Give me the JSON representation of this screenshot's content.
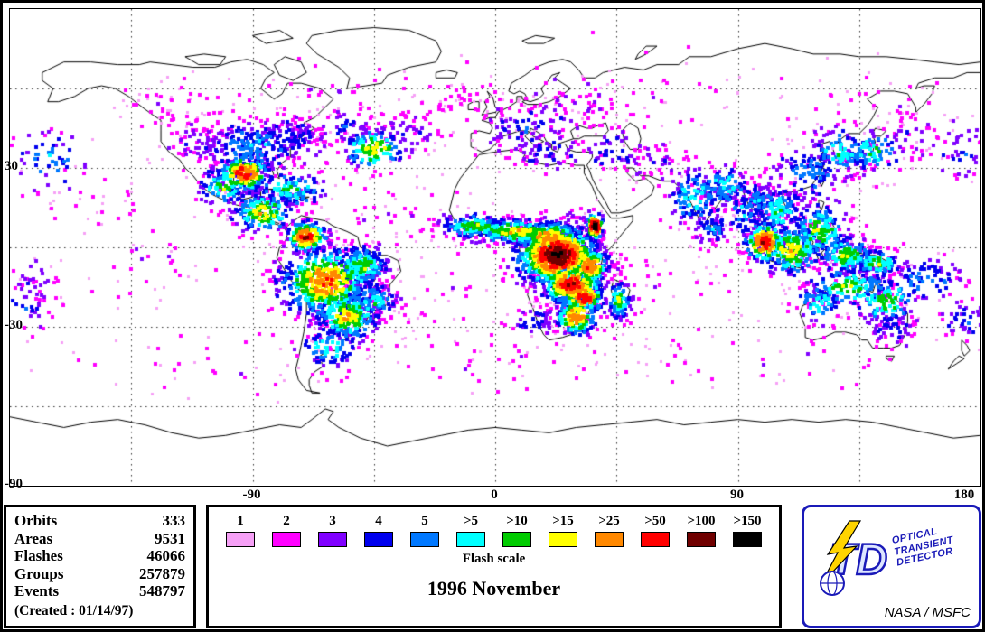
{
  "title": "1996 November",
  "axis": {
    "lat_ticks": [
      {
        "label": "30",
        "lat": 30
      },
      {
        "label": "-30",
        "lat": -30
      },
      {
        "label": "-90",
        "lat": -90
      }
    ],
    "lon_ticks": [
      {
        "label": "-90",
        "lon": -90
      },
      {
        "label": "0",
        "lon": 0
      },
      {
        "label": "90",
        "lon": 90
      },
      {
        "label": "180",
        "lon": 180
      }
    ]
  },
  "stats": {
    "rows": [
      [
        "Orbits",
        "333"
      ],
      [
        "Areas",
        "9531"
      ],
      [
        "Flashes",
        "46066"
      ],
      [
        "Groups",
        "257879"
      ],
      [
        "Events",
        "548797"
      ]
    ],
    "created": "(Created : 01/14/97)"
  },
  "legend": {
    "title": "Flash scale",
    "entries": [
      {
        "label": "1",
        "color": "#F6A0F6"
      },
      {
        "label": "2",
        "color": "#FF00FF"
      },
      {
        "label": "3",
        "color": "#8000FF"
      },
      {
        "label": "4",
        "color": "#0000EE"
      },
      {
        "label": "5",
        "color": "#0078FF"
      },
      {
        "label": ">5",
        "color": "#00FFFF"
      },
      {
        "label": ">10",
        "color": "#00CC00"
      },
      {
        "label": ">15",
        "color": "#FFFF00"
      },
      {
        "label": ">25",
        "color": "#FF8800"
      },
      {
        "label": ">50",
        "color": "#FF0000"
      },
      {
        "label": ">100",
        "color": "#700000"
      },
      {
        "label": ">150",
        "color": "#000000"
      }
    ]
  },
  "logo": {
    "monogram": "TD",
    "lines": [
      "OPTICAL",
      "TRANSIENT",
      "DETECTOR"
    ],
    "credit": "NASA / MSFC"
  },
  "chart_data": {
    "type": "scatter",
    "title": "1996 November",
    "projection": "equirectangular",
    "lon_range": [
      -180,
      180
    ],
    "lat_range": [
      -90,
      90
    ],
    "grid": {
      "lon_step": 45,
      "lat_step": 30,
      "style": "dotted"
    },
    "levels": [
      "1",
      "2",
      "3",
      "4",
      "5",
      ">5",
      ">10",
      ">15",
      ">25",
      ">50",
      ">100",
      ">150"
    ],
    "colors": [
      "#F6A0F6",
      "#FF00FF",
      "#8000FF",
      "#0000EE",
      "#0078FF",
      "#00FFFF",
      "#00CC00",
      "#FFFF00",
      "#FF8800",
      "#FF0000",
      "#700000",
      "#000000"
    ],
    "clusters": [
      {
        "lon": 23,
        "lat": -3,
        "sx": 8,
        "sy": 6,
        "n": 900,
        "peak": 10
      },
      {
        "lon": 20,
        "lat": 4,
        "sx": 6,
        "sy": 3,
        "n": 250,
        "peak": 8
      },
      {
        "lon": 28,
        "lat": -14,
        "sx": 6,
        "sy": 4,
        "n": 420,
        "peak": 9
      },
      {
        "lon": 30,
        "lat": -26,
        "sx": 4,
        "sy": 4,
        "n": 220,
        "peak": 8
      },
      {
        "lon": 33,
        "lat": -19,
        "sx": 4,
        "sy": 3,
        "n": 170,
        "peak": 9
      },
      {
        "lon": 35,
        "lat": -7,
        "sx": 4,
        "sy": 4,
        "n": 200,
        "peak": 8
      },
      {
        "lon": 37,
        "lat": 8,
        "sx": 1.6,
        "sy": 2.6,
        "n": 90,
        "peak": 11
      },
      {
        "lon": 8,
        "lat": 6,
        "sx": 9,
        "sy": 2.6,
        "n": 240,
        "peak": 7
      },
      {
        "lon": -8,
        "lat": 8,
        "sx": 7,
        "sy": 2.4,
        "n": 170,
        "peak": 6
      },
      {
        "lon": 46,
        "lat": -20,
        "sx": 2.6,
        "sy": 4,
        "n": 110,
        "peak": 6
      },
      {
        "lon": 15,
        "lat": -28,
        "sx": 6,
        "sy": 3,
        "n": 60,
        "peak": 3
      },
      {
        "lon": -63,
        "lat": -13,
        "sx": 9,
        "sy": 7,
        "n": 560,
        "peak": 8
      },
      {
        "lon": -55,
        "lat": -26,
        "sx": 6,
        "sy": 5,
        "n": 280,
        "peak": 7
      },
      {
        "lon": -70,
        "lat": 4,
        "sx": 4,
        "sy": 3,
        "n": 190,
        "peak": 9
      },
      {
        "lon": -49,
        "lat": -7,
        "sx": 5,
        "sy": 4,
        "n": 220,
        "peak": 6
      },
      {
        "lon": -62,
        "lat": -38,
        "sx": 6,
        "sy": 4,
        "n": 90,
        "peak": 5
      },
      {
        "lon": -45,
        "lat": -20,
        "sx": 5,
        "sy": 4,
        "n": 120,
        "peak": 5
      },
      {
        "lon": -86,
        "lat": 13,
        "sx": 6,
        "sy": 4,
        "n": 170,
        "peak": 7
      },
      {
        "lon": -93,
        "lat": 28,
        "sx": 5,
        "sy": 3.5,
        "n": 190,
        "peak": 9
      },
      {
        "lon": -76,
        "lat": 22,
        "sx": 8,
        "sy": 4,
        "n": 140,
        "peak": 5
      },
      {
        "lon": -101,
        "lat": 23,
        "sx": 5,
        "sy": 4,
        "n": 110,
        "peak": 6
      },
      {
        "lon": -90,
        "lat": 38,
        "sx": 12,
        "sy": 6,
        "n": 260,
        "peak": 4
      },
      {
        "lon": -76,
        "lat": 42,
        "sx": 8,
        "sy": 5,
        "n": 110,
        "peak": 3
      },
      {
        "lon": -111,
        "lat": 41,
        "sx": 8,
        "sy": 6,
        "n": 70,
        "peak": 2
      },
      {
        "lon": -122,
        "lat": 54,
        "sx": 10,
        "sy": 6,
        "n": 50,
        "peak": 1
      },
      {
        "lon": -45,
        "lat": 37,
        "sx": 6,
        "sy": 4,
        "n": 130,
        "peak": 7
      },
      {
        "lon": -32,
        "lat": 44,
        "sx": 9,
        "sy": 5,
        "n": 70,
        "peak": 2
      },
      {
        "lon": -55,
        "lat": 45,
        "sx": 6,
        "sy": 4,
        "n": 60,
        "peak": 3
      },
      {
        "lon": -40,
        "lat": 12,
        "sx": 18,
        "sy": 9,
        "n": 60,
        "peak": 1
      },
      {
        "lon": -25,
        "lat": -18,
        "sx": 13,
        "sy": 9,
        "n": 45,
        "peak": 1
      },
      {
        "lon": 10,
        "lat": 45,
        "sx": 10,
        "sy": 5,
        "n": 90,
        "peak": 3
      },
      {
        "lon": 27,
        "lat": 51,
        "sx": 12,
        "sy": 6,
        "n": 60,
        "peak": 2
      },
      {
        "lon": -12,
        "lat": 56,
        "sx": 8,
        "sy": 5,
        "n": 35,
        "peak": 1
      },
      {
        "lon": 20,
        "lat": 36,
        "sx": 8,
        "sy": 4,
        "n": 60,
        "peak": 3
      },
      {
        "lon": 45,
        "lat": 36,
        "sx": 8,
        "sy": 5,
        "n": 60,
        "peak": 3
      },
      {
        "lon": 60,
        "lat": 32,
        "sx": 8,
        "sy": 5,
        "n": 45,
        "peak": 2
      },
      {
        "lon": 74,
        "lat": 19,
        "sx": 6,
        "sy": 6,
        "n": 140,
        "peak": 5
      },
      {
        "lon": 85,
        "lat": 23,
        "sx": 5,
        "sy": 4,
        "n": 100,
        "peak": 5
      },
      {
        "lon": 80,
        "lat": 7,
        "sx": 4,
        "sy": 3,
        "n": 70,
        "peak": 4
      },
      {
        "lon": 92,
        "lat": 13,
        "sx": 4,
        "sy": 6,
        "n": 80,
        "peak": 4
      },
      {
        "lon": 100,
        "lat": 2,
        "sx": 4,
        "sy": 4,
        "n": 210,
        "peak": 9
      },
      {
        "lon": 110,
        "lat": -1,
        "sx": 6,
        "sy": 5,
        "n": 240,
        "peak": 7
      },
      {
        "lon": 120,
        "lat": 6,
        "sx": 6,
        "sy": 6,
        "n": 200,
        "peak": 6
      },
      {
        "lon": 105,
        "lat": 14,
        "sx": 6,
        "sy": 5,
        "n": 150,
        "peak": 5
      },
      {
        "lon": 130,
        "lat": -3,
        "sx": 6,
        "sy": 4,
        "n": 170,
        "peak": 6
      },
      {
        "lon": 142,
        "lat": -6,
        "sx": 5,
        "sy": 3,
        "n": 130,
        "peak": 6
      },
      {
        "lon": 97,
        "lat": 18,
        "sx": 4,
        "sy": 4,
        "n": 80,
        "peak": 4
      },
      {
        "lon": 116,
        "lat": 28,
        "sx": 8,
        "sy": 6,
        "n": 130,
        "peak": 4
      },
      {
        "lon": 128,
        "lat": 36,
        "sx": 6,
        "sy": 5,
        "n": 110,
        "peak": 5
      },
      {
        "lon": 140,
        "lat": 36,
        "sx": 6,
        "sy": 5,
        "n": 100,
        "peak": 5
      },
      {
        "lon": 152,
        "lat": 42,
        "sx": 8,
        "sy": 5,
        "n": 55,
        "peak": 2
      },
      {
        "lon": 131,
        "lat": -15,
        "sx": 8,
        "sy": 4,
        "n": 150,
        "peak": 6
      },
      {
        "lon": 145,
        "lat": -20,
        "sx": 6,
        "sy": 5,
        "n": 120,
        "peak": 6
      },
      {
        "lon": 120,
        "lat": -21,
        "sx": 5,
        "sy": 4,
        "n": 75,
        "peak": 5
      },
      {
        "lon": 148,
        "lat": -31,
        "sx": 6,
        "sy": 4,
        "n": 65,
        "peak": 3
      },
      {
        "lon": 160,
        "lat": -13,
        "sx": 8,
        "sy": 5,
        "n": 85,
        "peak": 4
      },
      {
        "lon": 175,
        "lat": -27,
        "sx": 6,
        "sy": 5,
        "n": 45,
        "peak": 3
      },
      {
        "lon": -174,
        "lat": -22,
        "sx": 6,
        "sy": 5,
        "n": 35,
        "peak": 3
      },
      {
        "lon": -165,
        "lat": 33,
        "sx": 8,
        "sy": 6,
        "n": 55,
        "peak": 4
      },
      {
        "lon": -172,
        "lat": -12,
        "sx": 8,
        "sy": 5,
        "n": 35,
        "peak": 2
      },
      {
        "lon": 172,
        "lat": 36,
        "sx": 7,
        "sy": 6,
        "n": 45,
        "peak": 3
      },
      {
        "lon": -150,
        "lat": 18,
        "sx": 10,
        "sy": 6,
        "n": 35,
        "peak": 1
      },
      {
        "lon": -130,
        "lat": -8,
        "sx": 15,
        "sy": 8,
        "n": 35,
        "peak": 1
      },
      {
        "lon": 65,
        "lat": -12,
        "sx": 18,
        "sy": 9,
        "n": 45,
        "peak": 1
      },
      {
        "lon": 0,
        "lat": -42,
        "sx": 35,
        "sy": 7,
        "n": 55,
        "peak": 1
      },
      {
        "lon": 100,
        "lat": -42,
        "sx": 35,
        "sy": 7,
        "n": 50,
        "peak": 1
      },
      {
        "lon": -105,
        "lat": -44,
        "sx": 35,
        "sy": 7,
        "n": 45,
        "peak": 1
      },
      {
        "lon": 60,
        "lat": 55,
        "sx": 28,
        "sy": 8,
        "n": 55,
        "peak": 1
      },
      {
        "lon": -65,
        "lat": 58,
        "sx": 22,
        "sy": 7,
        "n": 35,
        "peak": 1
      },
      {
        "lon": 140,
        "lat": 55,
        "sx": 18,
        "sy": 7,
        "n": 35,
        "peak": 1
      },
      {
        "lon": 15,
        "lat": 62,
        "sx": 22,
        "sy": 6,
        "n": 25,
        "peak": 1
      }
    ]
  }
}
